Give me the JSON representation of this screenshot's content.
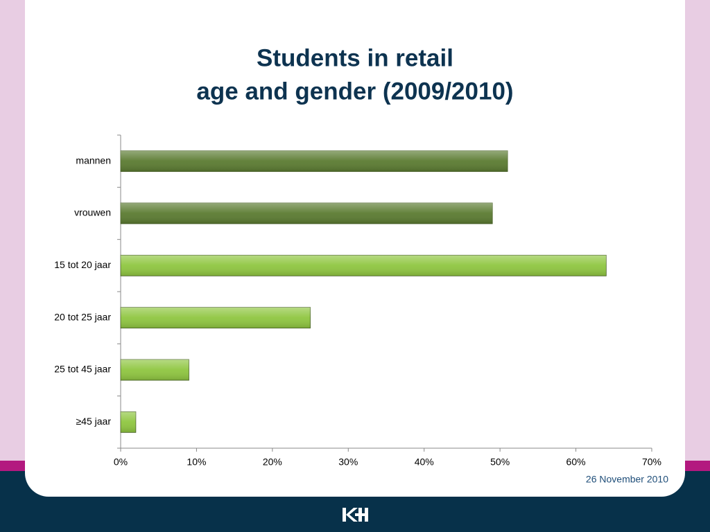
{
  "chart_data": {
    "type": "bar",
    "orientation": "horizontal",
    "title": [
      "Students in retail",
      "age and gender (2009/2010)"
    ],
    "categories": [
      "mannen",
      "vrouwen",
      "15 tot 20 jaar",
      "20 tot 25 jaar",
      "25 tot 45 jaar",
      "≥45 jaar"
    ],
    "values": [
      51,
      49,
      64,
      25,
      9,
      2
    ],
    "colors": [
      "#5b7b31",
      "#5b7b31",
      "#8fc640",
      "#8fc640",
      "#8fc640",
      "#8fc640"
    ],
    "xlim": [
      0,
      70
    ],
    "xticks": [
      {
        "value": 0,
        "label": "0%"
      },
      {
        "value": 10,
        "label": "10%"
      },
      {
        "value": 20,
        "label": "20%"
      },
      {
        "value": 30,
        "label": "30%"
      },
      {
        "value": 40,
        "label": "40%"
      },
      {
        "value": 50,
        "label": "50%"
      },
      {
        "value": 60,
        "label": "60%"
      },
      {
        "value": 70,
        "label": "70%"
      }
    ],
    "grid": false
  },
  "footer": {
    "date": "26 November 2010"
  }
}
